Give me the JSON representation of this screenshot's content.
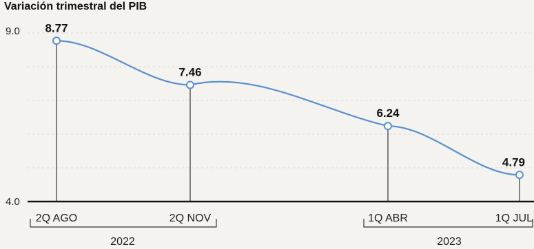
{
  "chart_data": {
    "type": "line",
    "title": "Variación trimestral del PIB",
    "ylim": [
      4.0,
      9.0
    ],
    "y_ticks": [
      "9.0",
      "4.0"
    ],
    "grid": true,
    "colors": {
      "line": "#5b8fd1",
      "axis": "#111111",
      "marker_fill": "#ffffff"
    },
    "x": [
      "2Q AGO",
      "2Q NOV",
      "1Q ABR",
      "1Q JUL"
    ],
    "values": [
      8.77,
      7.46,
      6.24,
      4.79
    ],
    "year_groups": [
      {
        "label": "2022",
        "from": 0,
        "to": 1
      },
      {
        "label": "2023",
        "from": 2,
        "to": 3
      }
    ]
  }
}
